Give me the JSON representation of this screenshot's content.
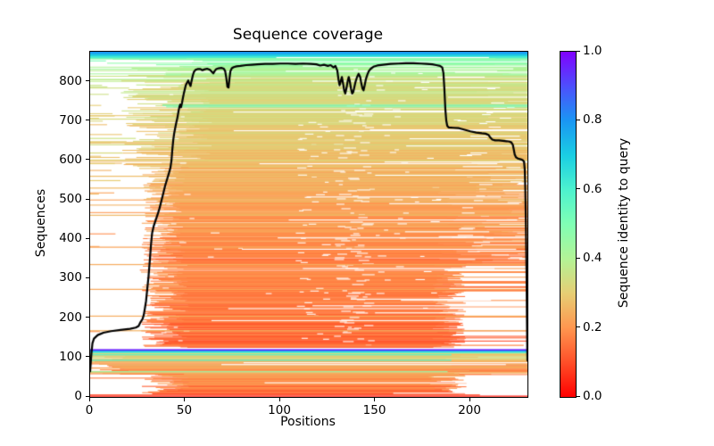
{
  "chart_data": {
    "type": "msa_coverage_line_and_heatmap",
    "title": "Sequence coverage",
    "xlabel": "Positions",
    "ylabel": "Sequences",
    "xlim": [
      0,
      230
    ],
    "ylim": [
      0,
      876
    ],
    "xticks": [
      0,
      50,
      100,
      150,
      200
    ],
    "yticks": [
      0,
      100,
      200,
      300,
      400,
      500,
      600,
      700,
      800
    ],
    "grid": false,
    "background": "#ffffff",
    "colorbar": {
      "label": "Sequence identity to query",
      "tick_labels": [
        "0.0",
        "0.2",
        "0.4",
        "0.6",
        "0.8",
        "1.0"
      ],
      "tick_values": [
        0,
        0.2,
        0.4,
        0.6,
        0.8,
        1.0
      ],
      "colormap": "rainbow_r",
      "stops": [
        [
          0,
          "#ff0000"
        ],
        [
          0.1,
          "#ff4f28"
        ],
        [
          0.2,
          "#ff964f"
        ],
        [
          0.3,
          "#e6ce74"
        ],
        [
          0.4,
          "#b3f396"
        ],
        [
          0.5,
          "#80ffb4"
        ],
        [
          0.6,
          "#4df2ce"
        ],
        [
          0.7,
          "#1acee3"
        ],
        [
          0.8,
          "#1a96f3"
        ],
        [
          0.9,
          "#4d4ffc"
        ],
        [
          1,
          "#8000ff"
        ]
      ]
    },
    "coverage_line": {
      "color": "#000000",
      "points": [
        [
          0,
          65
        ],
        [
          0.7,
          112
        ],
        [
          1.2,
          136
        ],
        [
          2,
          148
        ],
        [
          4,
          157
        ],
        [
          7,
          163
        ],
        [
          11,
          167
        ],
        [
          16,
          170
        ],
        [
          21,
          173
        ],
        [
          24,
          176
        ],
        [
          25.5,
          180
        ],
        [
          26.5,
          190
        ],
        [
          27.5,
          197
        ],
        [
          28.2,
          208
        ],
        [
          28.8,
          225
        ],
        [
          29.4,
          243
        ],
        [
          30,
          272
        ],
        [
          30.7,
          305
        ],
        [
          31.4,
          347
        ],
        [
          32,
          386
        ],
        [
          32.6,
          416
        ],
        [
          33.4,
          433
        ],
        [
          34.5,
          449
        ],
        [
          35.5,
          463
        ],
        [
          36.5,
          479
        ],
        [
          37.5,
          498
        ],
        [
          38.5,
          517
        ],
        [
          39.5,
          537
        ],
        [
          40.5,
          553
        ],
        [
          41.5,
          569
        ],
        [
          42.2,
          581
        ],
        [
          42.8,
          601
        ],
        [
          43.2,
          626
        ],
        [
          43.7,
          651
        ],
        [
          44.2,
          669
        ],
        [
          44.8,
          684
        ],
        [
          45.3,
          696
        ],
        [
          45.8,
          706
        ],
        [
          46.2,
          717
        ],
        [
          46.6,
          728
        ],
        [
          47,
          737
        ],
        [
          47.4,
          742
        ],
        [
          47.8,
          735
        ],
        [
          48.3,
          746
        ],
        [
          48.8,
          759
        ],
        [
          49.3,
          771
        ],
        [
          49.8,
          781
        ],
        [
          50.3,
          791
        ],
        [
          51,
          798
        ],
        [
          51.6,
          803
        ],
        [
          52.2,
          795
        ],
        [
          52.8,
          789
        ],
        [
          53.3,
          801
        ],
        [
          54,
          816
        ],
        [
          54.6,
          825
        ],
        [
          55.4,
          830
        ],
        [
          56.5,
          832
        ],
        [
          58,
          832
        ],
        [
          59,
          829
        ],
        [
          60,
          831
        ],
        [
          61.5,
          833
        ],
        [
          63,
          830
        ],
        [
          64,
          825
        ],
        [
          64.8,
          821
        ],
        [
          65.5,
          827
        ],
        [
          66.3,
          832
        ],
        [
          67.5,
          834
        ],
        [
          69,
          835
        ],
        [
          70.3,
          833
        ],
        [
          71,
          827
        ],
        [
          71.6,
          810
        ],
        [
          72.2,
          787
        ],
        [
          72.8,
          785
        ],
        [
          73.3,
          809
        ],
        [
          73.8,
          827
        ],
        [
          74.5,
          834
        ],
        [
          75.5,
          837
        ],
        [
          77,
          839
        ],
        [
          79,
          840
        ],
        [
          82,
          842
        ],
        [
          85,
          843
        ],
        [
          88,
          844
        ],
        [
          92,
          845
        ],
        [
          96,
          845
        ],
        [
          100,
          846
        ],
        [
          104,
          846
        ],
        [
          108,
          845
        ],
        [
          112,
          846
        ],
        [
          116,
          845
        ],
        [
          119,
          844
        ],
        [
          121,
          841
        ],
        [
          123,
          843
        ],
        [
          125,
          840
        ],
        [
          126.5,
          842
        ],
        [
          128,
          836
        ],
        [
          129,
          840
        ],
        [
          130,
          828
        ],
        [
          130.6,
          806
        ],
        [
          131.2,
          791
        ],
        [
          131.8,
          801
        ],
        [
          132.4,
          812
        ],
        [
          133,
          796
        ],
        [
          133.6,
          778
        ],
        [
          134.2,
          770
        ],
        [
          134.8,
          783
        ],
        [
          135.4,
          800
        ],
        [
          136,
          812
        ],
        [
          136.6,
          800
        ],
        [
          137.2,
          782
        ],
        [
          137.8,
          770
        ],
        [
          138.4,
          774
        ],
        [
          139,
          787
        ],
        [
          139.6,
          800
        ],
        [
          140.4,
          812
        ],
        [
          141.2,
          820
        ],
        [
          142,
          812
        ],
        [
          142.6,
          796
        ],
        [
          143.2,
          783
        ],
        [
          143.8,
          778
        ],
        [
          144.4,
          791
        ],
        [
          145,
          806
        ],
        [
          145.8,
          818
        ],
        [
          146.6,
          827
        ],
        [
          147.6,
          833
        ],
        [
          149,
          838
        ],
        [
          151,
          841
        ],
        [
          154,
          843
        ],
        [
          158,
          845
        ],
        [
          162,
          846
        ],
        [
          166,
          847
        ],
        [
          170,
          847
        ],
        [
          174,
          846
        ],
        [
          177,
          845
        ],
        [
          180,
          844
        ],
        [
          182,
          842
        ],
        [
          184,
          840
        ],
        [
          185.2,
          836
        ],
        [
          185.8,
          822
        ],
        [
          186.3,
          782
        ],
        [
          186.8,
          731
        ],
        [
          187.3,
          701
        ],
        [
          187.8,
          688
        ],
        [
          188.5,
          684
        ],
        [
          191,
          683
        ],
        [
          194,
          682
        ],
        [
          197,
          678
        ],
        [
          200,
          674
        ],
        [
          203,
          671
        ],
        [
          206,
          669
        ],
        [
          208,
          668
        ],
        [
          209.5,
          665
        ],
        [
          210.5,
          658
        ],
        [
          211.5,
          653
        ],
        [
          213,
          651
        ],
        [
          215,
          651
        ],
        [
          217,
          650
        ],
        [
          219,
          649
        ],
        [
          220.5,
          648
        ],
        [
          221.5,
          646
        ],
        [
          222.3,
          640
        ],
        [
          222.8,
          628
        ],
        [
          223.3,
          615
        ],
        [
          224,
          608
        ],
        [
          225,
          605
        ],
        [
          226.5,
          603
        ],
        [
          227.5,
          601
        ],
        [
          228.2,
          597
        ],
        [
          228.6,
          576
        ],
        [
          228.9,
          521
        ],
        [
          229.2,
          432
        ],
        [
          229.5,
          322
        ],
        [
          229.7,
          212
        ],
        [
          229.9,
          122
        ],
        [
          230,
          92
        ]
      ]
    },
    "bands": [
      {
        "name": "top-blue",
        "y0": 860,
        "y1": 876,
        "id0": 0.56,
        "id1": 0.8,
        "jitter": 0.02,
        "start_zero_prob": 0.9,
        "start_range": [
          0,
          8
        ],
        "end_max_prob": 0.97,
        "end_range": [
          215,
          230
        ],
        "skip_prob": 0.02,
        "white_streaks": 1,
        "stub_prob": 0,
        "stub_range": [
          0,
          0
        ]
      },
      {
        "name": "green-upper",
        "y0": 795,
        "y1": 860,
        "id0": 0.33,
        "id1": 0.5,
        "jitter": 0.05,
        "start_zero_prob": 0.22,
        "start_range": [
          3,
          85
        ],
        "end_max_prob": 0.8,
        "end_range": [
          205,
          229
        ],
        "skip_prob": 0.18,
        "white_streaks": 6,
        "stub_prob": 0.05,
        "stub_range": [
          4,
          20
        ]
      },
      {
        "name": "tan-upper",
        "y0": 580,
        "y1": 795,
        "id0": 0.26,
        "id1": 0.35,
        "jitter": 0.04,
        "start_zero_prob": 0.03,
        "start_range": [
          16,
          64
        ],
        "end_max_prob": 0.85,
        "end_range": [
          190,
          228
        ],
        "skip_prob": 0.12,
        "white_streaks": 12,
        "stub_prob": 0.1,
        "stub_range": [
          4,
          22
        ]
      },
      {
        "name": "orange-mid",
        "y0": 340,
        "y1": 580,
        "id0": 0.17,
        "id1": 0.26,
        "jitter": 0.04,
        "start_zero_prob": 0.01,
        "start_range": [
          27,
          50
        ],
        "end_max_prob": 0.5,
        "end_range": [
          183,
          226
        ],
        "skip_prob": 0.08,
        "white_streaks": 9,
        "stub_prob": 0.02,
        "stub_range": [
          4,
          14
        ]
      },
      {
        "name": "orange-low",
        "y0": 126,
        "y1": 340,
        "id0": 0.13,
        "id1": 0.19,
        "jitter": 0.04,
        "start_zero_prob": 0.01,
        "start_range": [
          26,
          52
        ],
        "end_max_prob": 0.1,
        "end_range": [
          180,
          198
        ],
        "skip_prob": 0.09,
        "white_streaks": 7,
        "stub_prob": 0.01,
        "stub_range": [
          3,
          10
        ]
      },
      {
        "name": "bottom-tan",
        "y0": 59,
        "y1": 110,
        "id0": 0.2,
        "id1": 0.3,
        "jitter": 0.07,
        "start_zero_prob": 0.55,
        "start_range": [
          0,
          22
        ],
        "end_max_prob": 0.75,
        "end_range": [
          186,
          212
        ],
        "skip_prob": 0.07,
        "white_streaks": 2,
        "stub_prob": 0,
        "stub_range": [
          0,
          0
        ]
      },
      {
        "name": "bottom-orange",
        "y0": 8,
        "y1": 59,
        "id0": 0.13,
        "id1": 0.21,
        "jitter": 0.05,
        "start_zero_prob": 0.02,
        "start_range": [
          26,
          52
        ],
        "end_max_prob": 0.06,
        "end_range": [
          178,
          198
        ],
        "skip_prob": 0.12,
        "white_streaks": 2,
        "stub_prob": 0,
        "stub_range": [
          0,
          0
        ]
      }
    ],
    "special_rows": [
      {
        "y": 740,
        "identity": 0.54,
        "x0": 38,
        "x1": 230
      },
      {
        "y": 736,
        "identity": 0.5,
        "x0": 40,
        "x1": 230
      },
      {
        "y": 705,
        "identity": 0.33,
        "x0": 0,
        "x1": 230
      },
      {
        "y": 656,
        "identity": 0.35,
        "x0": 0,
        "x1": 24
      },
      {
        "y": 640,
        "identity": 0.34,
        "x0": 0,
        "x1": 230
      },
      {
        "y": 619,
        "identity": 0.33,
        "x0": 0,
        "x1": 17
      },
      {
        "y": 601,
        "identity": 0.31,
        "x0": 0,
        "x1": 230
      },
      {
        "y": 592,
        "identity": 0.3,
        "x0": 0,
        "x1": 13
      },
      {
        "y": 560,
        "identity": 0.27,
        "x0": 0,
        "x1": 230
      },
      {
        "y": 549,
        "identity": 0.3,
        "x0": 0,
        "x1": 16
      },
      {
        "y": 530,
        "identity": 0.26,
        "x0": 0,
        "x1": 230
      },
      {
        "y": 461,
        "identity": 0.26,
        "x0": 0,
        "x1": 230
      },
      {
        "y": 380,
        "identity": 0.22,
        "x0": 0,
        "x1": 230
      },
      {
        "y": 336,
        "identity": 0.24,
        "x0": 0,
        "x1": 230
      },
      {
        "y": 273,
        "identity": 0.23,
        "x0": 0,
        "x1": 230
      },
      {
        "y": 205,
        "identity": 0.24,
        "x0": 0,
        "x1": 230
      },
      {
        "y": 168,
        "identity": 0.25,
        "x0": 0,
        "x1": 230
      },
      {
        "y": 131,
        "identity": 0.18,
        "x0": 28,
        "x1": 228
      },
      {
        "y": 119,
        "identity": 0.97,
        "x0": 0,
        "x1": 230,
        "lw": 2
      },
      {
        "y": 116,
        "identity": 0.8,
        "x0": 0,
        "x1": 230,
        "lw": 1.8
      },
      {
        "y": 113,
        "identity": 0.62,
        "x0": 0,
        "x1": 230,
        "lw": 1.8
      },
      {
        "y": 110,
        "identity": 0.33,
        "x0": 0,
        "x1": 230
      },
      {
        "y": 107,
        "identity": 0.58,
        "x0": 0,
        "x1": 190
      },
      {
        "y": 93,
        "identity": 0.6,
        "x0": 0,
        "x1": 190
      },
      {
        "y": 64,
        "identity": 0.45,
        "x0": 0,
        "x1": 188
      },
      {
        "y": 5,
        "identity": 0.1,
        "x0": 0,
        "x1": 205
      },
      {
        "y": 2,
        "identity": 0.03,
        "x0": 0,
        "x1": 230
      }
    ],
    "gap_clusters": [
      {
        "x0": 128,
        "x1": 150,
        "y0": 130,
        "y1": 832,
        "prob": 0.45,
        "wmin": 2,
        "wmax": 7
      },
      {
        "x0": 108,
        "x1": 127,
        "y0": 140,
        "y1": 700,
        "prob": 0.2,
        "wmin": 2,
        "wmax": 5
      },
      {
        "x0": 150,
        "x1": 168,
        "y0": 250,
        "y1": 832,
        "prob": 0.1,
        "wmin": 2,
        "wmax": 5
      },
      {
        "x0": 55,
        "x1": 105,
        "y0": 140,
        "y1": 560,
        "prob": 0.05,
        "wmin": 2,
        "wmax": 5
      },
      {
        "x0": 168,
        "x1": 186,
        "y0": 140,
        "y1": 840,
        "prob": 0.05,
        "wmin": 2,
        "wmax": 5
      },
      {
        "x0": 190,
        "x1": 228,
        "y0": 340,
        "y1": 590,
        "prob": 0.22,
        "wmin": 3,
        "wmax": 10
      },
      {
        "x0": 190,
        "x1": 228,
        "y0": 590,
        "y1": 858,
        "prob": 0.1,
        "wmin": 3,
        "wmax": 9
      },
      {
        "x0": 30,
        "x1": 55,
        "y0": 140,
        "y1": 832,
        "prob": 0.06,
        "wmin": 2,
        "wmax": 4
      }
    ],
    "seed": 42
  }
}
